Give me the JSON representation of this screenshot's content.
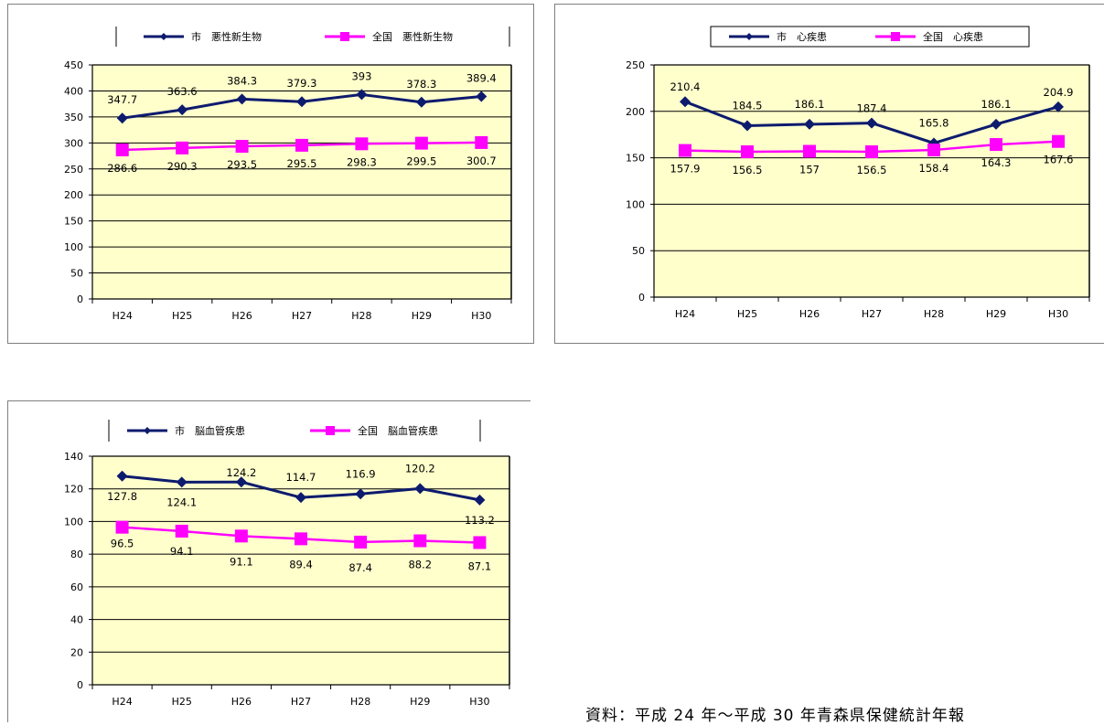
{
  "colors": {
    "city": "#0d1b6e",
    "national": "#ff00ff",
    "plot_bg": "#ffffcc",
    "grid": "#000000"
  },
  "source_note": "資料：平成 24 年～平成 30 年青森県保健統計年報",
  "chart_data": [
    {
      "type": "line",
      "title": "",
      "categories": [
        "H24",
        "H25",
        "H26",
        "H27",
        "H28",
        "H29",
        "H30"
      ],
      "ylim": [
        0,
        450
      ],
      "yticks": [
        0,
        50,
        100,
        150,
        200,
        250,
        300,
        350,
        400,
        450
      ],
      "grid": true,
      "legend": "top",
      "series": [
        {
          "name": "市　悪性新生物",
          "values": [
            347.7,
            363.6,
            384.3,
            379.3,
            393,
            378.3,
            389.4
          ],
          "labels": [
            "347.7",
            "363.6",
            "384.3",
            "379.3",
            "393",
            "378.3",
            "389.4"
          ],
          "marker": "diamond"
        },
        {
          "name": "全国　悪性新生物",
          "values": [
            286.6,
            290.3,
            293.5,
            295.5,
            298.3,
            299.5,
            300.7
          ],
          "labels": [
            "286.6",
            "290.3",
            "293.5",
            "295.5",
            "298.3",
            "299.5",
            "300.7"
          ],
          "marker": "square"
        }
      ]
    },
    {
      "type": "line",
      "title": "",
      "categories": [
        "H24",
        "H25",
        "H26",
        "H27",
        "H28",
        "H29",
        "H30"
      ],
      "ylim": [
        0,
        250
      ],
      "yticks": [
        0,
        50,
        100,
        150,
        200,
        250
      ],
      "grid": true,
      "legend": "top",
      "series": [
        {
          "name": "市　心疾患",
          "values": [
            210.4,
            184.5,
            186.1,
            187.4,
            165.8,
            186.1,
            204.9
          ],
          "labels": [
            "210.4",
            "184.5",
            "186.1",
            "187.4",
            "165.8",
            "186.1",
            "204.9"
          ],
          "marker": "diamond"
        },
        {
          "name": "全国　心疾患",
          "values": [
            157.9,
            156.5,
            157,
            156.5,
            158.4,
            164.3,
            167.6
          ],
          "labels": [
            "157.9",
            "156.5",
            "157",
            "156.5",
            "158.4",
            "164.3",
            "167.6"
          ],
          "marker": "square"
        }
      ]
    },
    {
      "type": "line",
      "title": "",
      "categories": [
        "H24",
        "H25",
        "H26",
        "H27",
        "H28",
        "H29",
        "H30"
      ],
      "ylim": [
        0,
        140
      ],
      "yticks": [
        0,
        20,
        40,
        60,
        80,
        100,
        120,
        140
      ],
      "grid": true,
      "legend": "top",
      "series": [
        {
          "name": "市　脳血管疾患",
          "values": [
            127.8,
            124.1,
            124.2,
            114.7,
            116.9,
            120.2,
            113.2
          ],
          "labels": [
            "127.8",
            "124.1",
            "124.2",
            "114.7",
            "116.9",
            "120.2",
            "113.2"
          ],
          "marker": "diamond"
        },
        {
          "name": "全国　脳血管疾患",
          "values": [
            96.5,
            94.1,
            91.1,
            89.4,
            87.4,
            88.2,
            87.1
          ],
          "labels": [
            "96.5",
            "94.1",
            "91.1",
            "89.4",
            "87.4",
            "88.2",
            "87.1"
          ],
          "marker": "square"
        }
      ]
    }
  ]
}
